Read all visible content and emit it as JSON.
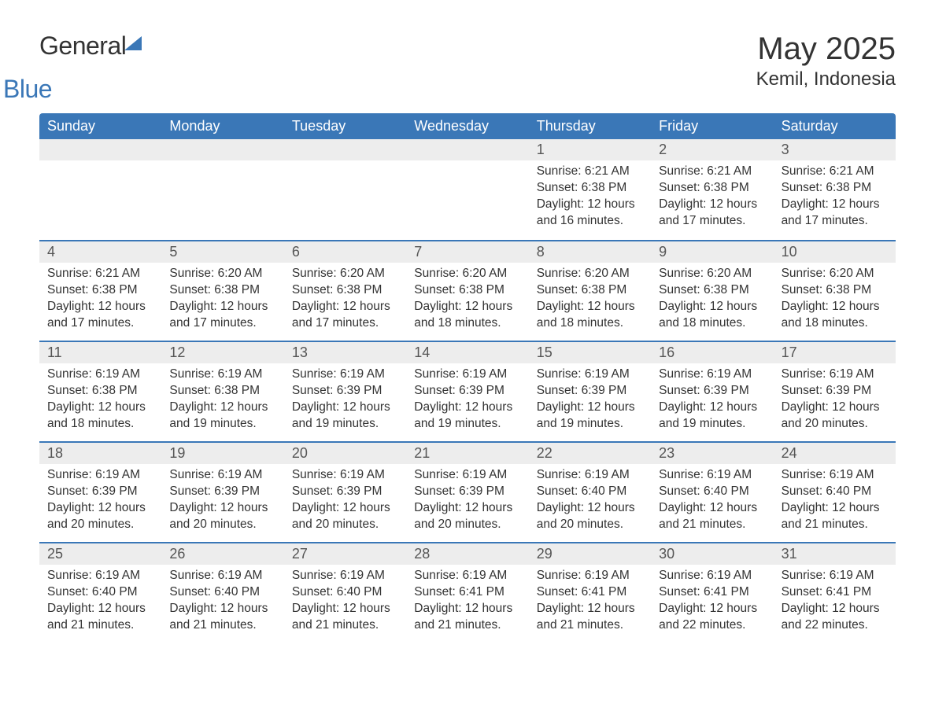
{
  "logo": {
    "part1": "General",
    "part2": "Blue"
  },
  "title": {
    "month": "May 2025",
    "location": "Kemil, Indonesia"
  },
  "colors": {
    "header_bg": "#3a77b7",
    "header_text": "#ffffff",
    "daynum_bg": "#ededed",
    "text": "#333333",
    "row_border": "#3a77b7"
  },
  "day_names": [
    "Sunday",
    "Monday",
    "Tuesday",
    "Wednesday",
    "Thursday",
    "Friday",
    "Saturday"
  ],
  "weeks": [
    [
      null,
      null,
      null,
      null,
      {
        "n": "1",
        "sr": "Sunrise: 6:21 AM",
        "ss": "Sunset: 6:38 PM",
        "d1": "Daylight: 12 hours",
        "d2": "and 16 minutes."
      },
      {
        "n": "2",
        "sr": "Sunrise: 6:21 AM",
        "ss": "Sunset: 6:38 PM",
        "d1": "Daylight: 12 hours",
        "d2": "and 17 minutes."
      },
      {
        "n": "3",
        "sr": "Sunrise: 6:21 AM",
        "ss": "Sunset: 6:38 PM",
        "d1": "Daylight: 12 hours",
        "d2": "and 17 minutes."
      }
    ],
    [
      {
        "n": "4",
        "sr": "Sunrise: 6:21 AM",
        "ss": "Sunset: 6:38 PM",
        "d1": "Daylight: 12 hours",
        "d2": "and 17 minutes."
      },
      {
        "n": "5",
        "sr": "Sunrise: 6:20 AM",
        "ss": "Sunset: 6:38 PM",
        "d1": "Daylight: 12 hours",
        "d2": "and 17 minutes."
      },
      {
        "n": "6",
        "sr": "Sunrise: 6:20 AM",
        "ss": "Sunset: 6:38 PM",
        "d1": "Daylight: 12 hours",
        "d2": "and 17 minutes."
      },
      {
        "n": "7",
        "sr": "Sunrise: 6:20 AM",
        "ss": "Sunset: 6:38 PM",
        "d1": "Daylight: 12 hours",
        "d2": "and 18 minutes."
      },
      {
        "n": "8",
        "sr": "Sunrise: 6:20 AM",
        "ss": "Sunset: 6:38 PM",
        "d1": "Daylight: 12 hours",
        "d2": "and 18 minutes."
      },
      {
        "n": "9",
        "sr": "Sunrise: 6:20 AM",
        "ss": "Sunset: 6:38 PM",
        "d1": "Daylight: 12 hours",
        "d2": "and 18 minutes."
      },
      {
        "n": "10",
        "sr": "Sunrise: 6:20 AM",
        "ss": "Sunset: 6:38 PM",
        "d1": "Daylight: 12 hours",
        "d2": "and 18 minutes."
      }
    ],
    [
      {
        "n": "11",
        "sr": "Sunrise: 6:19 AM",
        "ss": "Sunset: 6:38 PM",
        "d1": "Daylight: 12 hours",
        "d2": "and 18 minutes."
      },
      {
        "n": "12",
        "sr": "Sunrise: 6:19 AM",
        "ss": "Sunset: 6:38 PM",
        "d1": "Daylight: 12 hours",
        "d2": "and 19 minutes."
      },
      {
        "n": "13",
        "sr": "Sunrise: 6:19 AM",
        "ss": "Sunset: 6:39 PM",
        "d1": "Daylight: 12 hours",
        "d2": "and 19 minutes."
      },
      {
        "n": "14",
        "sr": "Sunrise: 6:19 AM",
        "ss": "Sunset: 6:39 PM",
        "d1": "Daylight: 12 hours",
        "d2": "and 19 minutes."
      },
      {
        "n": "15",
        "sr": "Sunrise: 6:19 AM",
        "ss": "Sunset: 6:39 PM",
        "d1": "Daylight: 12 hours",
        "d2": "and 19 minutes."
      },
      {
        "n": "16",
        "sr": "Sunrise: 6:19 AM",
        "ss": "Sunset: 6:39 PM",
        "d1": "Daylight: 12 hours",
        "d2": "and 19 minutes."
      },
      {
        "n": "17",
        "sr": "Sunrise: 6:19 AM",
        "ss": "Sunset: 6:39 PM",
        "d1": "Daylight: 12 hours",
        "d2": "and 20 minutes."
      }
    ],
    [
      {
        "n": "18",
        "sr": "Sunrise: 6:19 AM",
        "ss": "Sunset: 6:39 PM",
        "d1": "Daylight: 12 hours",
        "d2": "and 20 minutes."
      },
      {
        "n": "19",
        "sr": "Sunrise: 6:19 AM",
        "ss": "Sunset: 6:39 PM",
        "d1": "Daylight: 12 hours",
        "d2": "and 20 minutes."
      },
      {
        "n": "20",
        "sr": "Sunrise: 6:19 AM",
        "ss": "Sunset: 6:39 PM",
        "d1": "Daylight: 12 hours",
        "d2": "and 20 minutes."
      },
      {
        "n": "21",
        "sr": "Sunrise: 6:19 AM",
        "ss": "Sunset: 6:39 PM",
        "d1": "Daylight: 12 hours",
        "d2": "and 20 minutes."
      },
      {
        "n": "22",
        "sr": "Sunrise: 6:19 AM",
        "ss": "Sunset: 6:40 PM",
        "d1": "Daylight: 12 hours",
        "d2": "and 20 minutes."
      },
      {
        "n": "23",
        "sr": "Sunrise: 6:19 AM",
        "ss": "Sunset: 6:40 PM",
        "d1": "Daylight: 12 hours",
        "d2": "and 21 minutes."
      },
      {
        "n": "24",
        "sr": "Sunrise: 6:19 AM",
        "ss": "Sunset: 6:40 PM",
        "d1": "Daylight: 12 hours",
        "d2": "and 21 minutes."
      }
    ],
    [
      {
        "n": "25",
        "sr": "Sunrise: 6:19 AM",
        "ss": "Sunset: 6:40 PM",
        "d1": "Daylight: 12 hours",
        "d2": "and 21 minutes."
      },
      {
        "n": "26",
        "sr": "Sunrise: 6:19 AM",
        "ss": "Sunset: 6:40 PM",
        "d1": "Daylight: 12 hours",
        "d2": "and 21 minutes."
      },
      {
        "n": "27",
        "sr": "Sunrise: 6:19 AM",
        "ss": "Sunset: 6:40 PM",
        "d1": "Daylight: 12 hours",
        "d2": "and 21 minutes."
      },
      {
        "n": "28",
        "sr": "Sunrise: 6:19 AM",
        "ss": "Sunset: 6:41 PM",
        "d1": "Daylight: 12 hours",
        "d2": "and 21 minutes."
      },
      {
        "n": "29",
        "sr": "Sunrise: 6:19 AM",
        "ss": "Sunset: 6:41 PM",
        "d1": "Daylight: 12 hours",
        "d2": "and 21 minutes."
      },
      {
        "n": "30",
        "sr": "Sunrise: 6:19 AM",
        "ss": "Sunset: 6:41 PM",
        "d1": "Daylight: 12 hours",
        "d2": "and 22 minutes."
      },
      {
        "n": "31",
        "sr": "Sunrise: 6:19 AM",
        "ss": "Sunset: 6:41 PM",
        "d1": "Daylight: 12 hours",
        "d2": "and 22 minutes."
      }
    ]
  ]
}
